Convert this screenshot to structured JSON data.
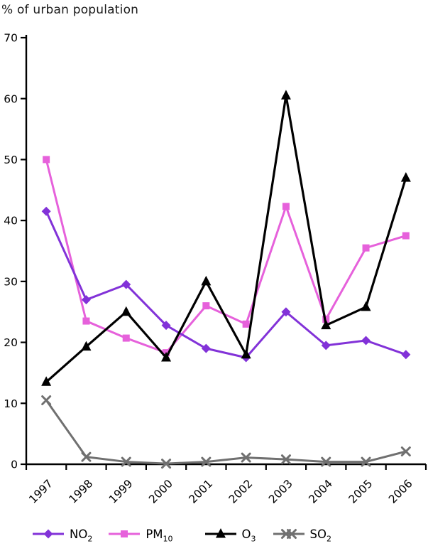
{
  "title": "% of urban population",
  "chart_data": {
    "type": "line",
    "title": "% of urban population",
    "xlabel": "",
    "ylabel": "",
    "x": [
      "1997",
      "1998",
      "1999",
      "2000",
      "2001",
      "2002",
      "2003",
      "2004",
      "2005",
      "2006"
    ],
    "ylim": [
      0,
      70
    ],
    "ytick_step": 10,
    "grid": false,
    "legend_position": "bottom",
    "axis_color": "#000000",
    "series": [
      {
        "name": "NO2",
        "label_base": "NO",
        "label_sub": "2",
        "color": "#8232d8",
        "marker": "diamond",
        "values": [
          41.5,
          27.0,
          29.5,
          22.8,
          19.0,
          17.5,
          25.0,
          19.5,
          20.3,
          18.0
        ]
      },
      {
        "name": "PM10",
        "label_base": "PM",
        "label_sub": "10",
        "color": "#e661db",
        "marker": "square",
        "values": [
          50.0,
          23.5,
          20.7,
          18.3,
          26.0,
          23.0,
          42.3,
          23.8,
          35.5,
          37.5
        ]
      },
      {
        "name": "O3",
        "label_base": "O",
        "label_sub": "3",
        "color": "#000000",
        "marker": "triangle",
        "values": [
          13.5,
          19.3,
          25.0,
          17.5,
          30.0,
          18.0,
          60.5,
          22.8,
          25.8,
          47.0
        ]
      },
      {
        "name": "SO2",
        "label_base": "SO",
        "label_sub": "2",
        "color": "#707070",
        "marker": "x",
        "values": [
          10.5,
          1.2,
          0.4,
          0.1,
          0.4,
          1.1,
          0.8,
          0.4,
          0.4,
          2.1
        ]
      }
    ]
  }
}
